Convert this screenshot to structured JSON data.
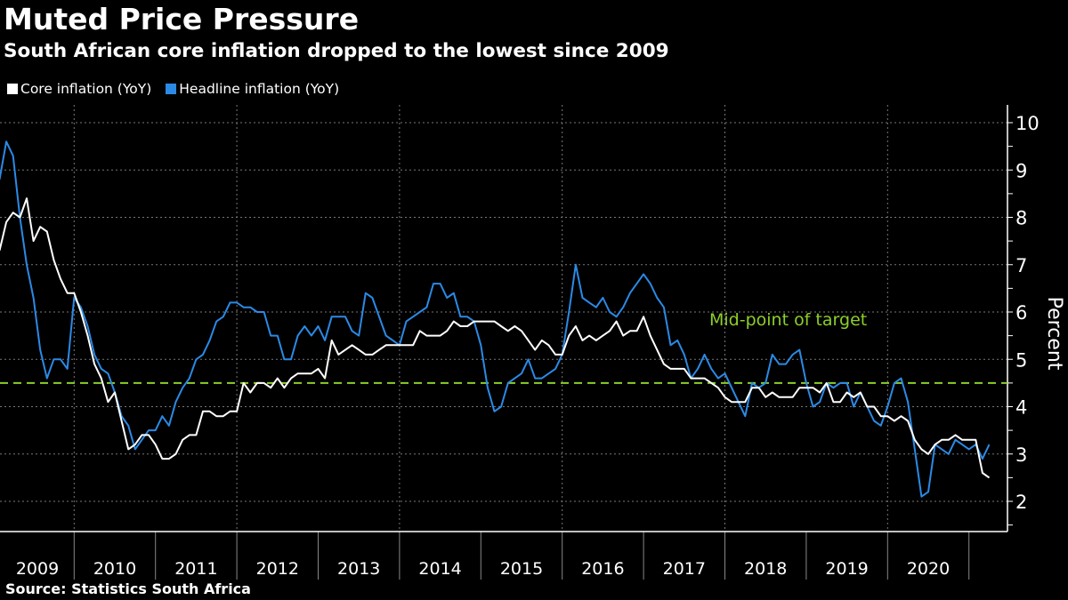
{
  "title": "Muted Price Pressure",
  "subtitle": "South African core inflation dropped to the lowest since 2009",
  "source": "Source: Statistics South Africa",
  "chart_data": {
    "type": "line",
    "title": "Muted Price Pressure",
    "subtitle": "South African core inflation dropped to the lowest since 2009",
    "ylabel": "Percent",
    "xlabel": "",
    "x_start": "2009-01",
    "x_end": "2021-03",
    "x_frequency": "monthly",
    "x_tick_labels": [
      "2009",
      "2010",
      "2011",
      "2012",
      "2013",
      "2014",
      "2015",
      "2016",
      "2017",
      "2018",
      "2019",
      "2020"
    ],
    "y_tick_labels": [
      "2",
      "3",
      "4",
      "5",
      "6",
      "7",
      "8",
      "9",
      "10"
    ],
    "ylim": [
      1.4,
      10.4
    ],
    "y_axis_side": "right",
    "grid": true,
    "legend_position": "top-left",
    "reference_line": {
      "value": 4.5,
      "label": "Mid-point of target",
      "color": "#8ccf2a",
      "style": "dashed"
    },
    "series": [
      {
        "name": "Core inflation (YoY)",
        "color": "#ffffff",
        "values": [
          7.3,
          7.9,
          8.1,
          8.0,
          8.4,
          7.5,
          7.8,
          7.7,
          7.1,
          6.7,
          6.4,
          6.4,
          6.0,
          5.5,
          4.9,
          4.6,
          4.1,
          4.3,
          3.7,
          3.1,
          3.2,
          3.4,
          3.4,
          3.2,
          2.9,
          2.9,
          3.0,
          3.3,
          3.4,
          3.4,
          3.9,
          3.9,
          3.8,
          3.8,
          3.9,
          3.9,
          4.5,
          4.3,
          4.5,
          4.5,
          4.4,
          4.6,
          4.4,
          4.6,
          4.7,
          4.7,
          4.7,
          4.8,
          4.6,
          5.4,
          5.1,
          5.2,
          5.3,
          5.2,
          5.1,
          5.1,
          5.2,
          5.3,
          5.3,
          5.3,
          5.3,
          5.3,
          5.6,
          5.5,
          5.5,
          5.5,
          5.6,
          5.8,
          5.7,
          5.7,
          5.8,
          5.8,
          5.8,
          5.8,
          5.7,
          5.6,
          5.7,
          5.6,
          5.4,
          5.2,
          5.4,
          5.3,
          5.1,
          5.1,
          5.5,
          5.7,
          5.4,
          5.5,
          5.4,
          5.5,
          5.6,
          5.8,
          5.5,
          5.6,
          5.6,
          5.9,
          5.5,
          5.2,
          4.9,
          4.8,
          4.8,
          4.8,
          4.6,
          4.6,
          4.6,
          4.5,
          4.4,
          4.2,
          4.1,
          4.1,
          4.1,
          4.4,
          4.4,
          4.2,
          4.3,
          4.2,
          4.2,
          4.2,
          4.4,
          4.4,
          4.4,
          4.3,
          4.5,
          4.1,
          4.1,
          4.3,
          4.2,
          4.3,
          4.0,
          4.0,
          3.8,
          3.8,
          3.7,
          3.8,
          3.7,
          3.3,
          3.1,
          3.0,
          3.2,
          3.3,
          3.3,
          3.4,
          3.3,
          3.3,
          3.3,
          2.6,
          2.5
        ]
      },
      {
        "name": "Headline inflation (YoY)",
        "color": "#2b8ae6",
        "values": [
          8.8,
          9.6,
          9.3,
          8.0,
          7.0,
          6.3,
          5.2,
          4.6,
          5.0,
          5.0,
          4.8,
          6.3,
          6.1,
          5.7,
          5.1,
          4.8,
          4.7,
          4.3,
          3.8,
          3.6,
          3.1,
          3.3,
          3.5,
          3.5,
          3.8,
          3.6,
          4.1,
          4.4,
          4.6,
          5.0,
          5.1,
          5.4,
          5.8,
          5.9,
          6.2,
          6.2,
          6.1,
          6.1,
          6.0,
          6.0,
          5.5,
          5.5,
          5.0,
          5.0,
          5.5,
          5.7,
          5.5,
          5.7,
          5.4,
          5.9,
          5.9,
          5.9,
          5.6,
          5.5,
          6.4,
          6.3,
          5.9,
          5.5,
          5.4,
          5.3,
          5.8,
          5.9,
          6.0,
          6.1,
          6.6,
          6.6,
          6.3,
          6.4,
          5.9,
          5.9,
          5.8,
          5.3,
          4.4,
          3.9,
          4.0,
          4.5,
          4.6,
          4.7,
          5.0,
          4.6,
          4.6,
          4.7,
          4.8,
          5.1,
          6.0,
          7.0,
          6.3,
          6.2,
          6.1,
          6.3,
          6.0,
          5.9,
          6.1,
          6.4,
          6.6,
          6.8,
          6.6,
          6.3,
          6.1,
          5.3,
          5.4,
          5.1,
          4.6,
          4.8,
          5.1,
          4.8,
          4.6,
          4.7,
          4.4,
          4.1,
          3.8,
          4.5,
          4.4,
          4.5,
          5.1,
          4.9,
          4.9,
          5.1,
          5.2,
          4.5,
          4.0,
          4.1,
          4.5,
          4.4,
          4.5,
          4.5,
          4.0,
          4.3,
          4.0,
          3.7,
          3.6,
          4.0,
          4.5,
          4.6,
          4.1,
          3.1,
          2.1,
          2.2,
          3.2,
          3.1,
          3.0,
          3.3,
          3.2,
          3.1,
          3.2,
          2.9,
          3.2
        ]
      }
    ]
  }
}
